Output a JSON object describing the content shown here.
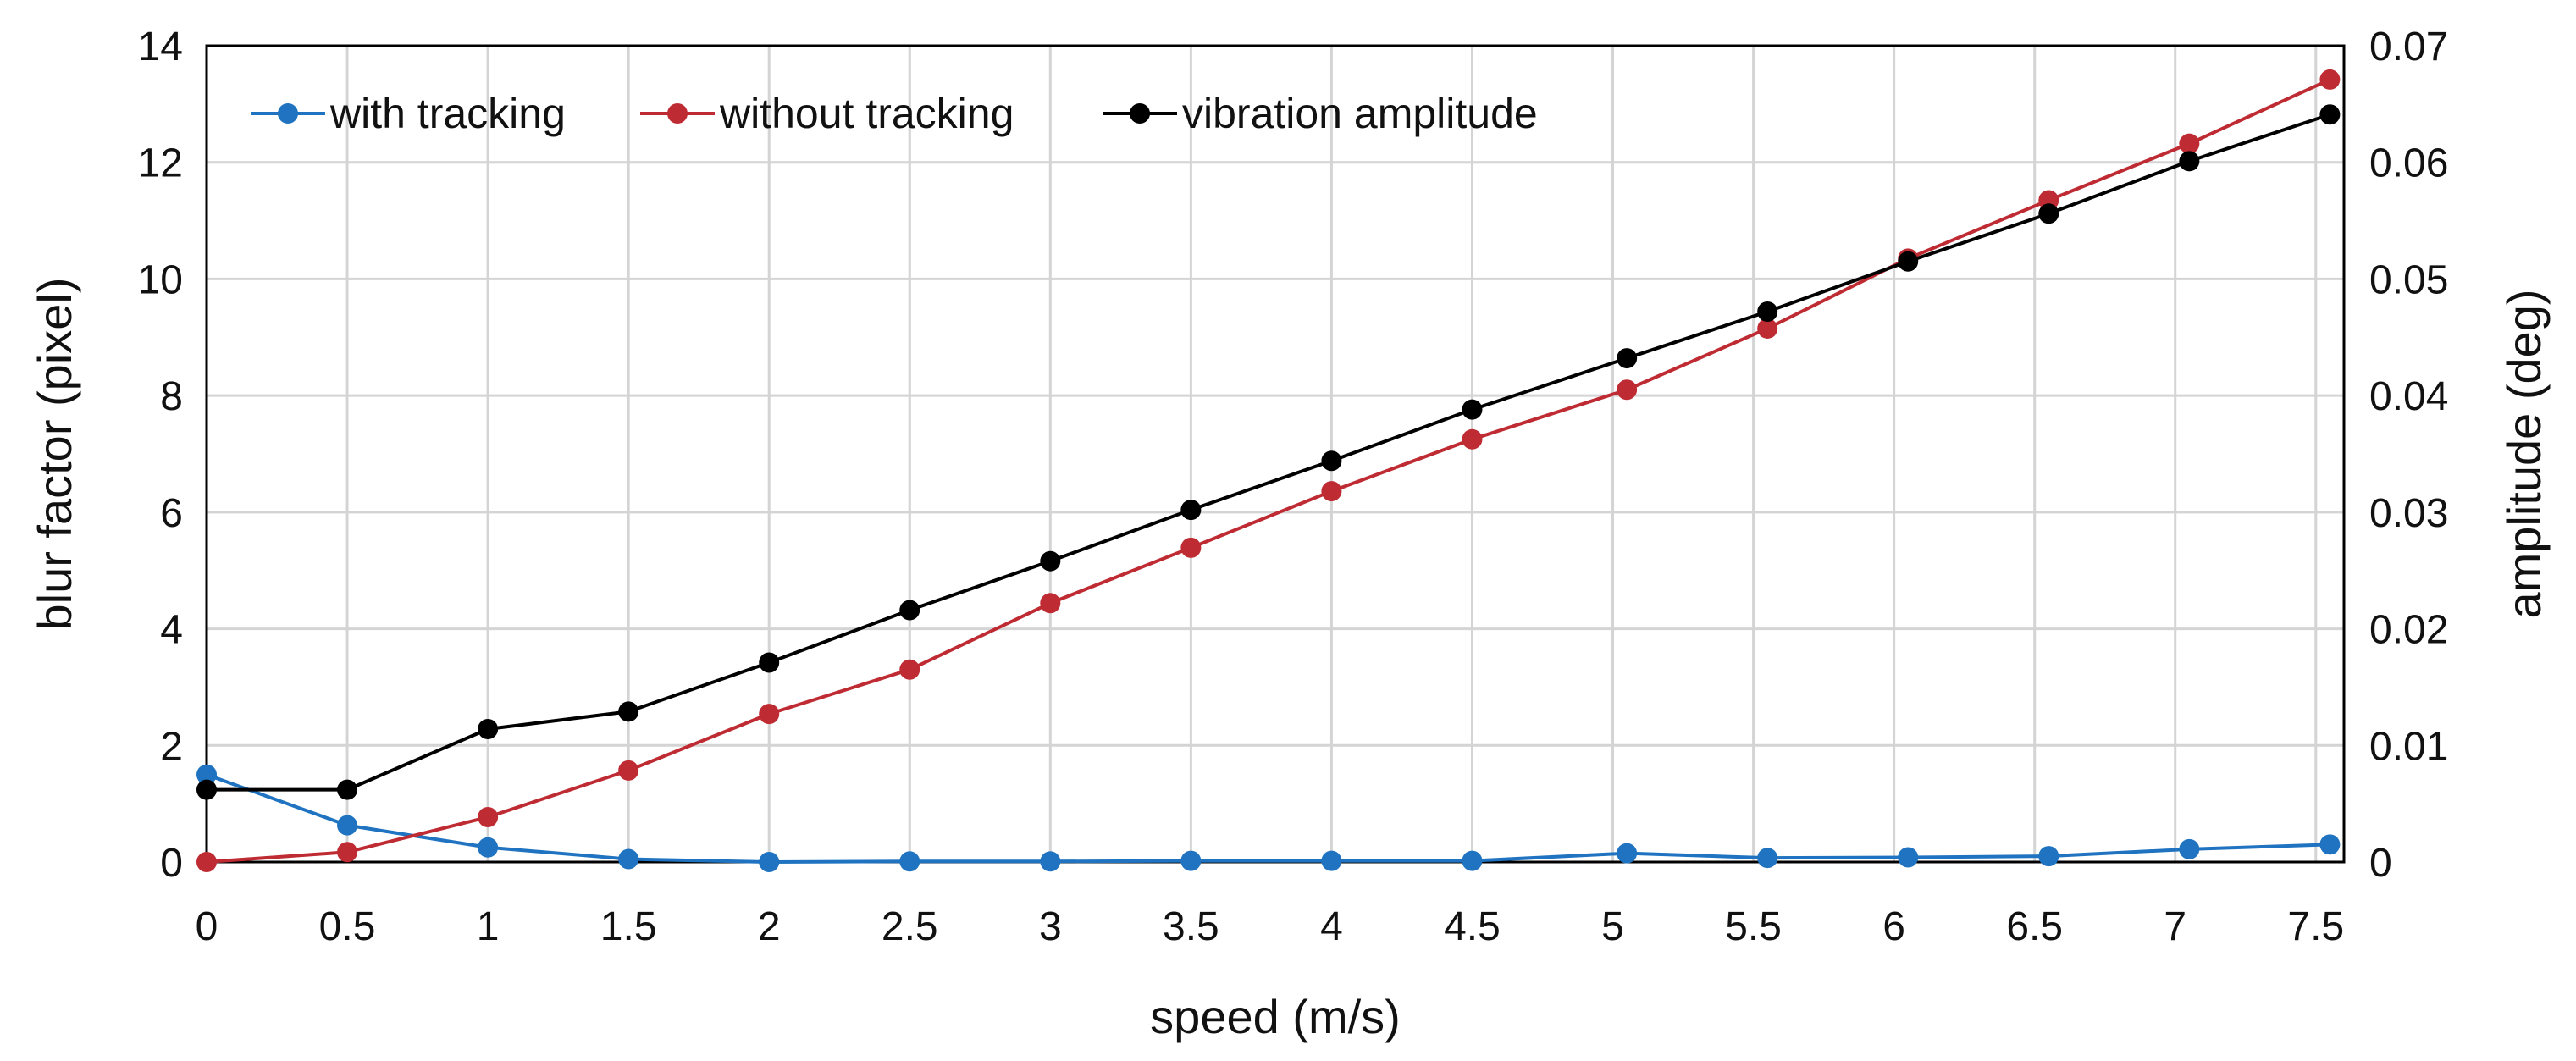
{
  "chart_data": {
    "type": "line",
    "title": "",
    "xlabel": "speed (m/s)",
    "ylabel": "blur factor (pixel)",
    "y2label": "amplitude (deg)",
    "xlim": [
      0,
      7.6
    ],
    "ylim": [
      0,
      14
    ],
    "y2lim": [
      0,
      0.07
    ],
    "grid": true,
    "legend_position": "top-left",
    "x_ticks": [
      0,
      0.5,
      1,
      1.5,
      2,
      2.5,
      3,
      3.5,
      4,
      4.5,
      5,
      5.5,
      6,
      6.5,
      7,
      7.5
    ],
    "x_tick_labels": [
      "0",
      "0.5",
      "1",
      "1.5",
      "2",
      "2.5",
      "3",
      "3.5",
      "4",
      "4.5",
      "5",
      "5.5",
      "6",
      "6.5",
      "7",
      "7.5"
    ],
    "y_ticks": [
      0,
      2,
      4,
      6,
      8,
      10,
      12,
      14
    ],
    "y_tick_labels": [
      "0",
      "2",
      "4",
      "6",
      "8",
      "10",
      "12",
      "14"
    ],
    "y2_ticks": [
      0,
      0.01,
      0.02,
      0.03,
      0.04,
      0.05,
      0.06,
      0.07
    ],
    "y2_tick_labels": [
      "0",
      "0.01",
      "0.02",
      "0.03",
      "0.04",
      "0.05",
      "0.06",
      "0.07"
    ],
    "x": [
      0,
      0.5,
      1.0,
      1.5,
      2.0,
      2.5,
      3.0,
      3.5,
      4.0,
      4.5,
      5.05,
      5.55,
      6.05,
      6.55,
      7.05,
      7.55
    ],
    "series": [
      {
        "name": "with tracking",
        "color": "#1f73c0",
        "axis": "left",
        "values": [
          1.5,
          0.63,
          0.25,
          0.05,
          0.0,
          0.01,
          0.01,
          0.02,
          0.02,
          0.02,
          0.15,
          0.07,
          0.08,
          0.1,
          0.22,
          0.3
        ]
      },
      {
        "name": "without tracking",
        "color": "#bf2b33",
        "axis": "left",
        "values": [
          0.0,
          0.17,
          0.77,
          1.57,
          2.54,
          3.3,
          4.44,
          5.39,
          6.36,
          7.25,
          8.1,
          9.15,
          10.35,
          11.35,
          12.32,
          13.42
        ]
      },
      {
        "name": "vibration amplitude",
        "color": "#000000",
        "axis": "right",
        "values": [
          0.0062,
          0.0062,
          0.0114,
          0.0129,
          0.0171,
          0.0216,
          0.0258,
          0.0302,
          0.0344,
          0.0388,
          0.0432,
          0.0472,
          0.0515,
          0.0556,
          0.0601,
          0.0641
        ]
      }
    ]
  }
}
